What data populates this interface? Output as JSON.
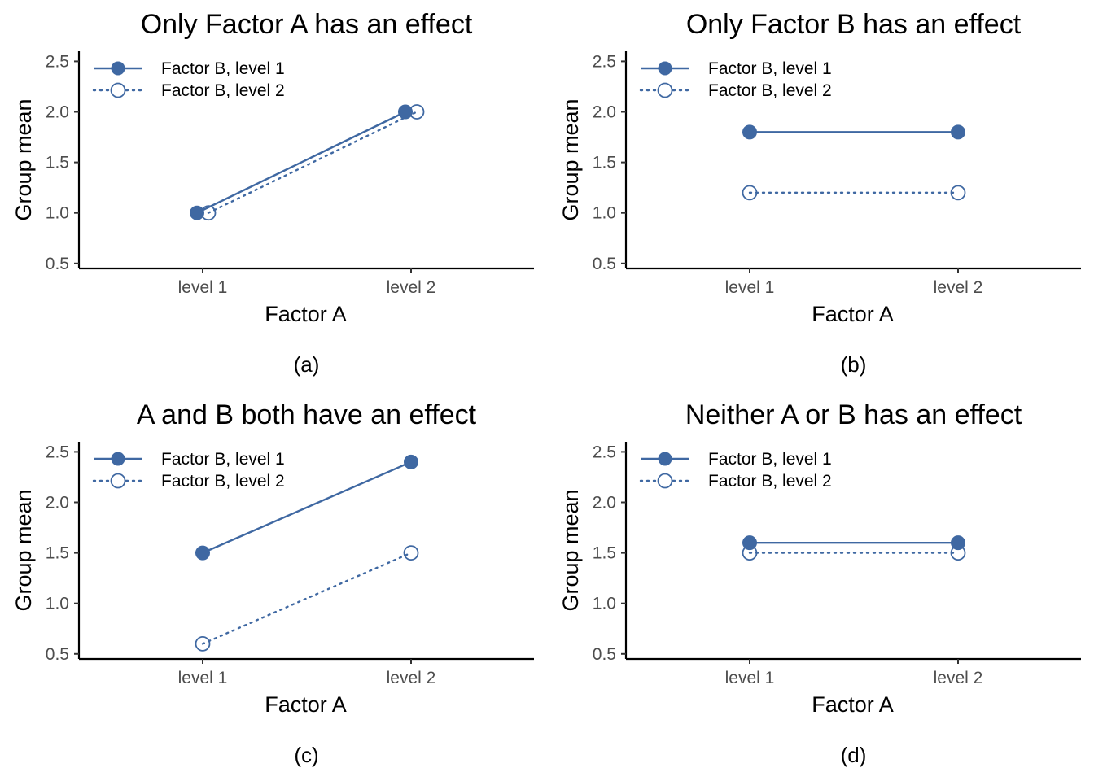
{
  "colors": {
    "series": "#3f68a2",
    "axis": "#000000",
    "tick_text": "#4d4d4d"
  },
  "chart_data": [
    {
      "type": "line",
      "title": "Only Factor A has an effect",
      "caption": "(a)",
      "xlabel": "Factor A",
      "ylabel": "Group mean",
      "categories": [
        "level 1",
        "level 2"
      ],
      "yticks": [
        "0.5",
        "1.0",
        "1.5",
        "2.0",
        "2.5"
      ],
      "ylim": [
        0.45,
        2.6
      ],
      "grid": false,
      "legend_position": "top-left",
      "series": [
        {
          "name": "Factor B, level 1",
          "values": [
            1.0,
            2.0
          ],
          "line": "solid",
          "marker": "filled-circle"
        },
        {
          "name": "Factor B, level 2",
          "values": [
            1.0,
            2.0
          ],
          "line": "dotted",
          "marker": "open-circle"
        }
      ]
    },
    {
      "type": "line",
      "title": "Only Factor B has an effect",
      "caption": "(b)",
      "xlabel": "Factor A",
      "ylabel": "Group mean",
      "categories": [
        "level 1",
        "level 2"
      ],
      "yticks": [
        "0.5",
        "1.0",
        "1.5",
        "2.0",
        "2.5"
      ],
      "ylim": [
        0.45,
        2.6
      ],
      "grid": false,
      "legend_position": "top-left",
      "series": [
        {
          "name": "Factor B, level 1",
          "values": [
            1.8,
            1.8
          ],
          "line": "solid",
          "marker": "filled-circle"
        },
        {
          "name": "Factor B, level 2",
          "values": [
            1.2,
            1.2
          ],
          "line": "dotted",
          "marker": "open-circle"
        }
      ]
    },
    {
      "type": "line",
      "title": "A and B both have an effect",
      "caption": "(c)",
      "xlabel": "Factor A",
      "ylabel": "Group mean",
      "categories": [
        "level 1",
        "level 2"
      ],
      "yticks": [
        "0.5",
        "1.0",
        "1.5",
        "2.0",
        "2.5"
      ],
      "ylim": [
        0.45,
        2.6
      ],
      "grid": false,
      "legend_position": "top-left",
      "series": [
        {
          "name": "Factor B, level 1",
          "values": [
            1.5,
            2.4
          ],
          "line": "solid",
          "marker": "filled-circle"
        },
        {
          "name": "Factor B, level 2",
          "values": [
            0.6,
            1.5
          ],
          "line": "dotted",
          "marker": "open-circle"
        }
      ]
    },
    {
      "type": "line",
      "title": "Neither A or B has an effect",
      "caption": "(d)",
      "xlabel": "Factor A",
      "ylabel": "Group mean",
      "categories": [
        "level 1",
        "level 2"
      ],
      "yticks": [
        "0.5",
        "1.0",
        "1.5",
        "2.0",
        "2.5"
      ],
      "ylim": [
        0.45,
        2.6
      ],
      "grid": false,
      "legend_position": "top-left",
      "series": [
        {
          "name": "Factor B, level 1",
          "values": [
            1.6,
            1.6
          ],
          "line": "solid",
          "marker": "filled-circle"
        },
        {
          "name": "Factor B, level 2",
          "values": [
            1.5,
            1.5
          ],
          "line": "dotted",
          "marker": "open-circle"
        }
      ]
    }
  ]
}
